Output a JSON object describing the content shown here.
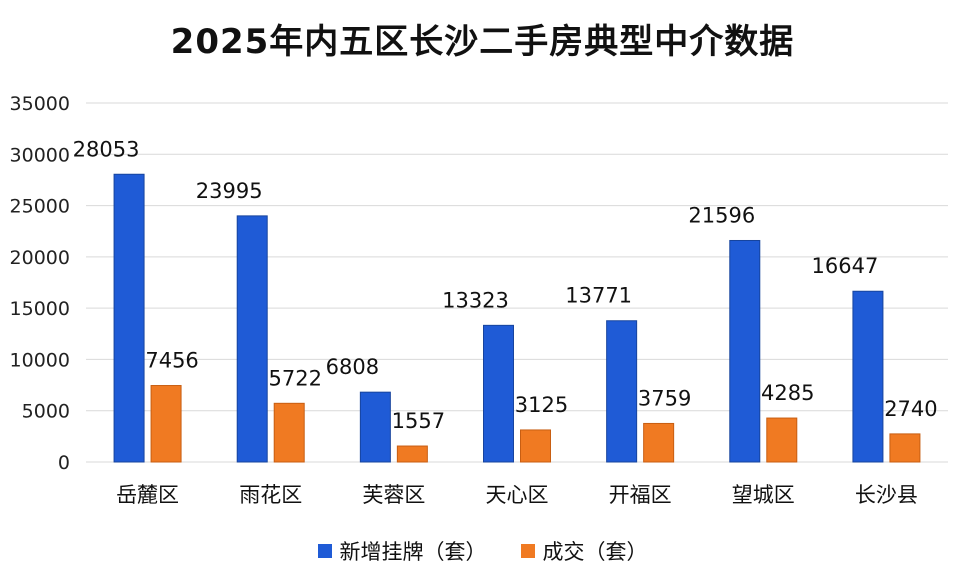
{
  "chart_data": {
    "type": "bar",
    "title": "2025年内五区长沙二手房典型中介数据",
    "categories": [
      "岳麓区",
      "雨花区",
      "芙蓉区",
      "天心区",
      "开福区",
      "望城区",
      "长沙县"
    ],
    "series": [
      {
        "name": "新增挂牌（套）",
        "color": "#1f5bd6",
        "values": [
          28053,
          23995,
          6808,
          13323,
          13771,
          21596,
          16647
        ]
      },
      {
        "name": "成交（套）",
        "color": "#f07a22",
        "values": [
          7456,
          5722,
          1557,
          3125,
          3759,
          4285,
          2740
        ]
      }
    ],
    "yticks": [
      0,
      5000,
      10000,
      15000,
      20000,
      25000,
      30000,
      35000
    ],
    "ylim": [
      0,
      35000
    ],
    "grid": true,
    "legend": "bottom"
  }
}
